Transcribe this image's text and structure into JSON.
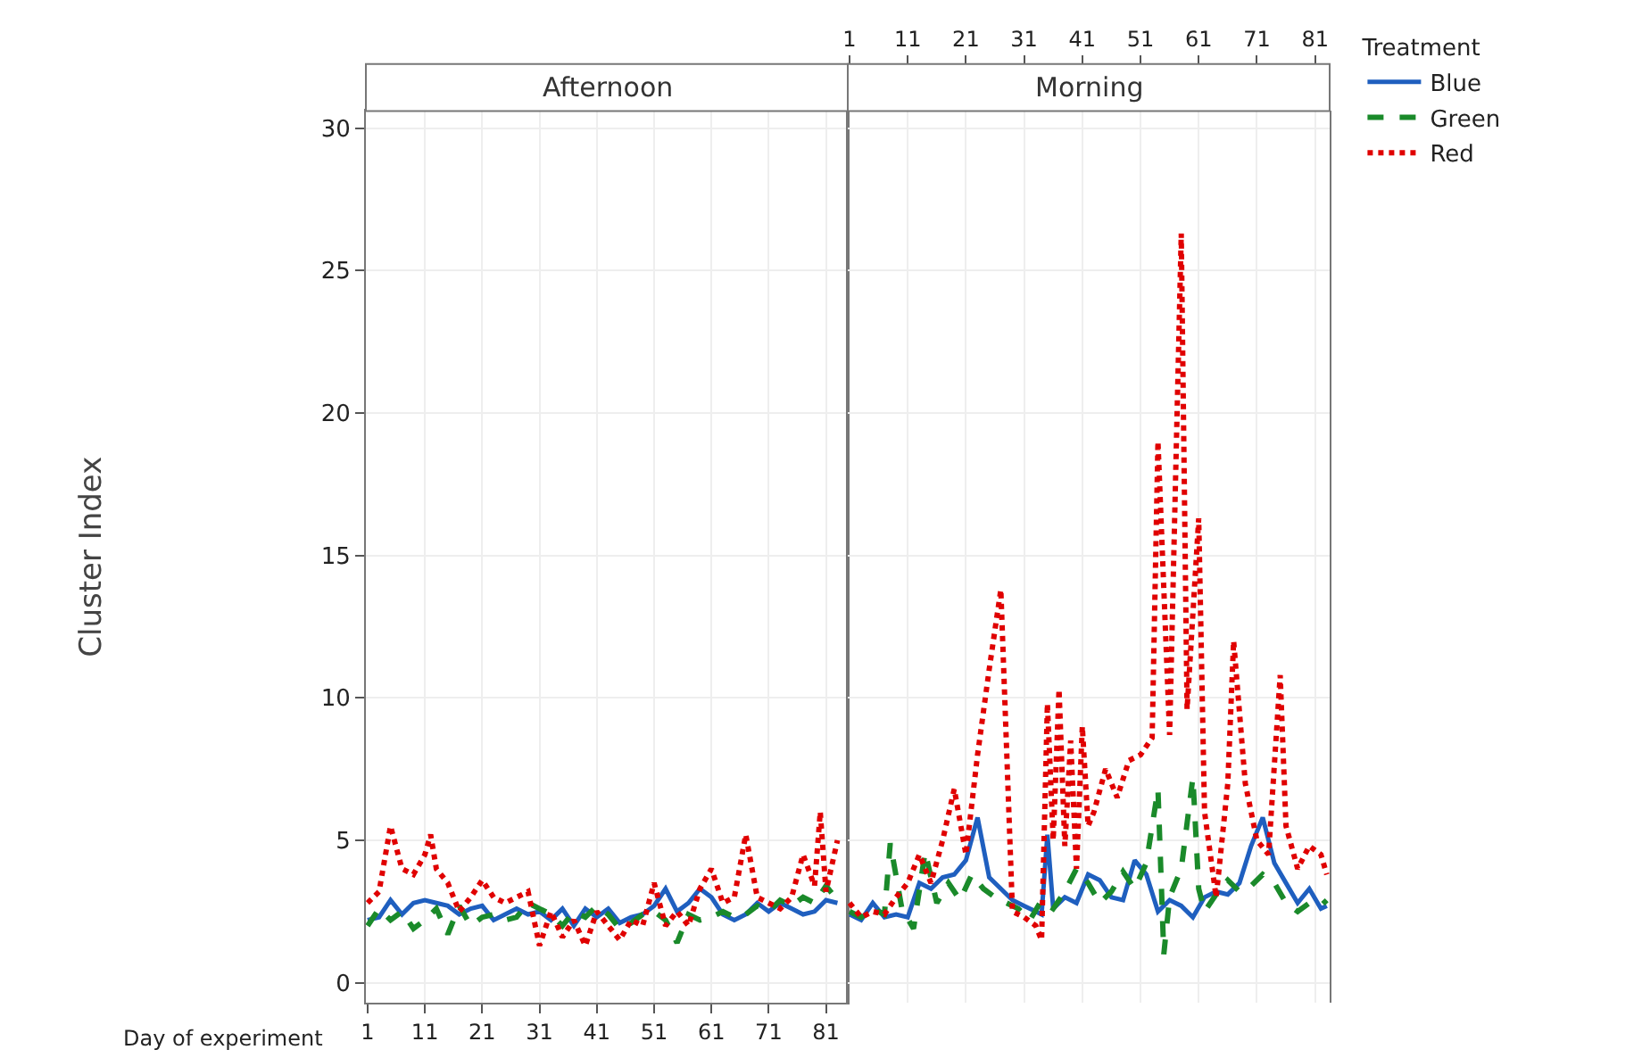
{
  "chart_data": [
    {
      "type": "line",
      "title": "Afternoon",
      "legend_title": "Treatment",
      "legend": "right",
      "xlabel": "Day of experiment",
      "ylabel": "Cluster Index",
      "xlim": [
        0.7,
        84.8
      ],
      "xticks": [
        1,
        11,
        21,
        31,
        41,
        51,
        61,
        71,
        81
      ],
      "ylim": [
        -0.7,
        30.6
      ],
      "yticks": [
        0,
        5,
        10,
        15,
        20,
        25,
        30
      ],
      "grid": true,
      "series": [
        {
          "name": "Blue",
          "color": "#1f5fbf",
          "line_style": "solid",
          "x": [
            1,
            3,
            5,
            7,
            9,
            11,
            13,
            15,
            17,
            19,
            21,
            23,
            25,
            27,
            29,
            31,
            33,
            35,
            37,
            39,
            41,
            43,
            45,
            47,
            49,
            51,
            53,
            55,
            57,
            59,
            61,
            63,
            65,
            67,
            69,
            71,
            73,
            75,
            77,
            79,
            81,
            83
          ],
          "values": [
            2.2,
            2.3,
            2.9,
            2.4,
            2.8,
            2.9,
            2.8,
            2.7,
            2.4,
            2.6,
            2.7,
            2.2,
            2.4,
            2.6,
            2.4,
            2.5,
            2.2,
            2.6,
            2.0,
            2.6,
            2.3,
            2.6,
            2.1,
            2.3,
            2.4,
            2.7,
            3.3,
            2.5,
            2.8,
            3.3,
            3.0,
            2.4,
            2.2,
            2.4,
            2.8,
            2.5,
            2.8,
            2.6,
            2.4,
            2.5,
            2.9,
            2.8
          ]
        },
        {
          "name": "Green",
          "color": "#1a8a2a",
          "line_style": "dashed",
          "x": [
            1,
            3,
            5,
            7,
            9,
            11,
            13,
            15,
            17,
            19,
            21,
            23,
            25,
            27,
            29,
            31,
            33,
            35,
            37,
            39,
            41,
            43,
            45,
            47,
            49,
            51,
            53,
            55,
            57,
            59,
            61,
            63,
            65,
            67,
            69,
            71,
            73,
            75,
            77,
            79,
            81,
            83
          ],
          "values": [
            2.0,
            2.6,
            2.2,
            2.5,
            1.9,
            2.2,
            2.6,
            1.7,
            2.7,
            2.0,
            2.3,
            2.4,
            2.2,
            2.3,
            2.8,
            2.6,
            2.4,
            2.0,
            2.5,
            2.3,
            2.7,
            2.4,
            1.9,
            2.1,
            2.4,
            2.5,
            2.2,
            1.4,
            2.4,
            2.2,
            2.3,
            2.5,
            2.3,
            2.4,
            2.7,
            2.5,
            2.9,
            2.7,
            3.0,
            2.8,
            3.4,
            2.9
          ]
        },
        {
          "name": "Red",
          "color": "#e00000",
          "line_style": "dotted",
          "x": [
            1,
            3,
            5,
            7,
            9,
            11,
            12,
            13,
            15,
            17,
            19,
            21,
            23,
            25,
            27,
            29,
            31,
            33,
            35,
            37,
            39,
            41,
            43,
            45,
            47,
            49,
            51,
            53,
            55,
            57,
            59,
            61,
            63,
            65,
            67,
            69,
            71,
            73,
            75,
            77,
            79,
            80,
            81,
            83
          ],
          "values": [
            2.8,
            3.2,
            5.5,
            4.0,
            3.8,
            4.5,
            5.2,
            4.0,
            3.5,
            2.5,
            3.0,
            3.6,
            3.0,
            2.8,
            3.0,
            3.2,
            1.3,
            2.5,
            1.6,
            2.2,
            1.3,
            2.5,
            2.0,
            1.5,
            2.2,
            2.0,
            3.5,
            2.0,
            2.5,
            2.0,
            3.3,
            4.0,
            2.8,
            3.0,
            5.2,
            3.0,
            2.8,
            2.6,
            3.0,
            4.5,
            3.4,
            6.0,
            3.2,
            5.0
          ]
        }
      ]
    },
    {
      "type": "line",
      "title": "Morning",
      "xlim": [
        0.7,
        83.5
      ],
      "xticks": [
        1,
        11,
        21,
        31,
        41,
        51,
        61,
        71,
        81
      ],
      "ylim": [
        -0.7,
        30.6
      ],
      "yticks": [
        0,
        5,
        10,
        15,
        20,
        25,
        30
      ],
      "grid": true,
      "tick_labels": "x",
      "series": [
        {
          "color": "#1f5fbf",
          "line_style": "solid",
          "x": [
            1,
            3,
            5,
            7,
            9,
            11,
            13,
            15,
            17,
            19,
            21,
            23,
            25,
            27,
            29,
            31,
            33,
            34,
            35,
            36,
            38,
            40,
            42,
            44,
            46,
            48,
            50,
            52,
            54,
            56,
            58,
            60,
            62,
            64,
            66,
            68,
            70,
            72,
            74,
            76,
            78,
            80,
            82,
            83
          ],
          "values": [
            2.4,
            2.2,
            2.8,
            2.3,
            2.4,
            2.3,
            3.5,
            3.3,
            3.7,
            3.8,
            4.3,
            5.8,
            3.7,
            3.3,
            2.9,
            2.7,
            2.5,
            2.4,
            5.2,
            2.6,
            3.0,
            2.8,
            3.8,
            3.6,
            3.0,
            2.9,
            4.3,
            3.8,
            2.5,
            2.9,
            2.7,
            2.3,
            3.0,
            3.2,
            3.1,
            3.5,
            4.8,
            5.8,
            4.2,
            3.5,
            2.8,
            3.3,
            2.6,
            2.7
          ]
        },
        {
          "color": "#1a8a2a",
          "line_style": "dashed",
          "x": [
            1,
            3,
            5,
            7,
            8,
            10,
            12,
            14,
            16,
            18,
            20,
            22,
            24,
            26,
            28,
            30,
            32,
            34,
            36,
            38,
            40,
            42,
            44,
            46,
            48,
            50,
            52,
            54,
            55,
            56,
            58,
            60,
            61,
            62,
            64,
            66,
            68,
            70,
            72,
            74,
            76,
            78,
            80,
            82,
            83
          ],
          "values": [
            2.5,
            2.3,
            2.6,
            2.4,
            4.9,
            2.6,
            1.9,
            4.6,
            2.8,
            3.5,
            2.9,
            3.8,
            3.3,
            3.0,
            2.8,
            2.6,
            2.2,
            2.9,
            2.6,
            3.2,
            4.0,
            3.5,
            2.8,
            3.2,
            3.9,
            3.3,
            4.2,
            6.8,
            1.0,
            3.0,
            4.0,
            7.2,
            3.3,
            2.5,
            3.1,
            3.6,
            3.2,
            3.4,
            3.8,
            3.5,
            2.8,
            2.5,
            2.8,
            2.7,
            2.9
          ]
        },
        {
          "color": "#e00000",
          "line_style": "dotted",
          "x": [
            1,
            3,
            5,
            7,
            9,
            11,
            13,
            15,
            17,
            19,
            21,
            23,
            25,
            27,
            29,
            31,
            33,
            34,
            35,
            36,
            37,
            38,
            39,
            40,
            41,
            42,
            43,
            45,
            47,
            49,
            51,
            53,
            54,
            56,
            58,
            59,
            61,
            62,
            64,
            66,
            67,
            69,
            71,
            73,
            75,
            76,
            78,
            80,
            82,
            83
          ],
          "values": [
            2.8,
            2.3,
            2.5,
            2.4,
            3.0,
            3.5,
            4.5,
            3.5,
            5.0,
            6.8,
            4.5,
            8.0,
            11.0,
            13.8,
            2.5,
            2.3,
            2.0,
            1.5,
            9.8,
            5.0,
            10.3,
            4.8,
            8.5,
            4.0,
            9.0,
            5.5,
            6.0,
            7.5,
            6.5,
            7.8,
            8.0,
            8.6,
            19.0,
            8.7,
            26.3,
            9.6,
            16.3,
            6.0,
            3.0,
            7.0,
            12.0,
            7.0,
            5.0,
            4.5,
            10.8,
            5.5,
            4.0,
            4.8,
            4.5,
            3.8
          ]
        }
      ]
    }
  ]
}
